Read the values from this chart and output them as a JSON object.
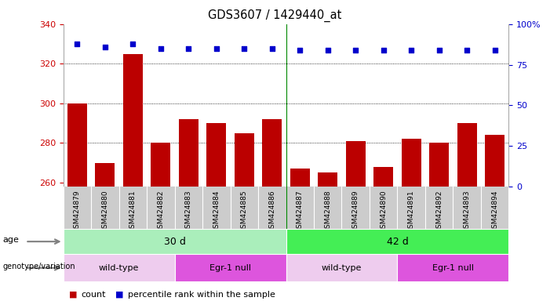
{
  "title": "GDS3607 / 1429440_at",
  "samples": [
    "GSM424879",
    "GSM424880",
    "GSM424881",
    "GSM424882",
    "GSM424883",
    "GSM424884",
    "GSM424885",
    "GSM424886",
    "GSM424887",
    "GSM424888",
    "GSM424889",
    "GSM424890",
    "GSM424891",
    "GSM424892",
    "GSM424893",
    "GSM424894"
  ],
  "counts": [
    300,
    270,
    325,
    280,
    292,
    290,
    285,
    292,
    267,
    265,
    281,
    268,
    282,
    280,
    290,
    284
  ],
  "percentile_ranks": [
    88,
    86,
    88,
    85,
    85,
    85,
    85,
    85,
    84,
    84,
    84,
    84,
    84,
    84,
    84,
    84
  ],
  "ylim_left": [
    258,
    340
  ],
  "ylim_right": [
    0,
    100
  ],
  "yticks_left": [
    260,
    280,
    300,
    320,
    340
  ],
  "yticks_right": [
    0,
    25,
    50,
    75,
    100
  ],
  "bar_color": "#bb0000",
  "dot_color": "#0000cc",
  "xtick_bg_color": "#cccccc",
  "age_groups": [
    {
      "label": "30 d",
      "start": 0,
      "end": 8,
      "color": "#aaeebb"
    },
    {
      "label": "42 d",
      "start": 8,
      "end": 16,
      "color": "#44ee55"
    }
  ],
  "genotype_groups": [
    {
      "label": "wild-type",
      "start": 0,
      "end": 4,
      "color": "#eeccee"
    },
    {
      "label": "Egr-1 null",
      "start": 4,
      "end": 8,
      "color": "#dd55dd"
    },
    {
      "label": "wild-type",
      "start": 8,
      "end": 12,
      "color": "#eeccee"
    },
    {
      "label": "Egr-1 null",
      "start": 12,
      "end": 16,
      "color": "#dd55dd"
    }
  ],
  "legend_count_color": "#bb0000",
  "legend_dot_color": "#0000cc",
  "grid_color": "#000000",
  "background_color": "#ffffff",
  "tick_label_color_left": "#cc0000",
  "tick_label_color_right": "#0000cc",
  "plot_facecolor": "#ffffff",
  "age_label_arrow_color": "#888888",
  "separator_color": "#008800"
}
